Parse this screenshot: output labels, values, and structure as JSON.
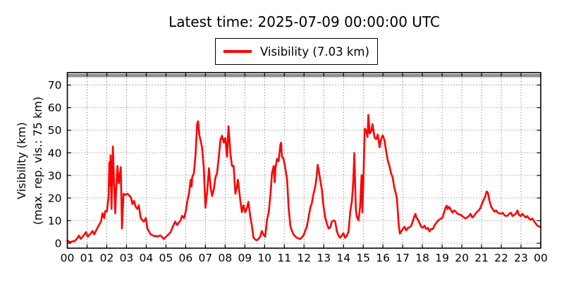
{
  "chart_data": {
    "type": "line",
    "title": "Latest time: 2025-07-09 00:00:00 UTC",
    "legend": {
      "label": "Visibility (7.03 km)",
      "position": "upper center"
    },
    "ylabel_line1": "Visibility (km)",
    "ylabel_line2": "(max. rep. vis.: 75 km)",
    "xlabel": "",
    "xlim": [
      0,
      24
    ],
    "ylim": [
      -2.2,
      75.5
    ],
    "xticks": [
      0,
      1,
      2,
      3,
      4,
      5,
      6,
      7,
      8,
      9,
      10,
      11,
      12,
      13,
      14,
      15,
      16,
      17,
      18,
      19,
      20,
      21,
      22,
      23,
      24
    ],
    "xtick_labels": [
      "00",
      "01",
      "02",
      "03",
      "04",
      "05",
      "06",
      "07",
      "08",
      "09",
      "10",
      "11",
      "12",
      "13",
      "14",
      "15",
      "16",
      "17",
      "18",
      "19",
      "20",
      "21",
      "22",
      "23",
      "00"
    ],
    "yticks": [
      0,
      10,
      20,
      30,
      40,
      50,
      60,
      70
    ],
    "ytick_labels": [
      "0",
      "10",
      "20",
      "30",
      "40",
      "50",
      "60",
      "70"
    ],
    "grid": "dotted",
    "grid_color": "#444444",
    "line_color": "#ff0000",
    "max_reported_visibility_km": 75,
    "max_band_color": "#8f8f8f",
    "latest_value_km": 7.03,
    "series": [
      {
        "name": "Visibility (7.03 km)",
        "color": "#ff0000",
        "points": [
          [
            0.0,
            1.2
          ],
          [
            0.1,
            0.6
          ],
          [
            0.18,
            0.5
          ],
          [
            0.27,
            0.9
          ],
          [
            0.35,
            0.8
          ],
          [
            0.44,
            1.5
          ],
          [
            0.52,
            2.4
          ],
          [
            0.59,
            3.4
          ],
          [
            0.68,
            1.9
          ],
          [
            0.77,
            2.8
          ],
          [
            0.86,
            3.9
          ],
          [
            0.95,
            4.9
          ],
          [
            1.03,
            2.9
          ],
          [
            1.12,
            3.7
          ],
          [
            1.2,
            4.4
          ],
          [
            1.28,
            5.4
          ],
          [
            1.36,
            3.9
          ],
          [
            1.45,
            5.5
          ],
          [
            1.54,
            7.0
          ],
          [
            1.62,
            8.3
          ],
          [
            1.71,
            9.6
          ],
          [
            1.78,
            13.2
          ],
          [
            1.87,
            11.1
          ],
          [
            1.92,
            14.2
          ],
          [
            2.0,
            14.0
          ],
          [
            2.09,
            20.4
          ],
          [
            2.13,
            35.8
          ],
          [
            2.17,
            25.5
          ],
          [
            2.19,
            38.9
          ],
          [
            2.24,
            15.2
          ],
          [
            2.31,
            42.8
          ],
          [
            2.37,
            26.5
          ],
          [
            2.43,
            13.2
          ],
          [
            2.48,
            25.0
          ],
          [
            2.54,
            34.2
          ],
          [
            2.61,
            26.5
          ],
          [
            2.66,
            30.0
          ],
          [
            2.71,
            33.7
          ],
          [
            2.77,
            6.5
          ],
          [
            2.85,
            21.9
          ],
          [
            2.92,
            21.4
          ],
          [
            3.05,
            21.9
          ],
          [
            3.22,
            20.4
          ],
          [
            3.3,
            17.3
          ],
          [
            3.38,
            18.8
          ],
          [
            3.47,
            16.0
          ],
          [
            3.55,
            15.2
          ],
          [
            3.62,
            16.8
          ],
          [
            3.72,
            11.1
          ],
          [
            3.8,
            10.3
          ],
          [
            3.88,
            9.6
          ],
          [
            3.98,
            11.1
          ],
          [
            4.06,
            6.5
          ],
          [
            4.15,
            5.0
          ],
          [
            4.23,
            3.9
          ],
          [
            4.32,
            3.5
          ],
          [
            4.4,
            3.1
          ],
          [
            4.48,
            3.3
          ],
          [
            4.56,
            2.9
          ],
          [
            4.65,
            3.3
          ],
          [
            4.73,
            3.4
          ],
          [
            4.82,
            2.5
          ],
          [
            4.9,
            1.9
          ],
          [
            4.98,
            2.7
          ],
          [
            5.07,
            3.4
          ],
          [
            5.16,
            4.2
          ],
          [
            5.24,
            4.9
          ],
          [
            5.33,
            6.9
          ],
          [
            5.41,
            8.5
          ],
          [
            5.47,
            9.6
          ],
          [
            5.57,
            8.0
          ],
          [
            5.65,
            9.0
          ],
          [
            5.74,
            10.1
          ],
          [
            5.82,
            12.1
          ],
          [
            5.92,
            11.1
          ],
          [
            6.0,
            14.0
          ],
          [
            6.09,
            18.8
          ],
          [
            6.17,
            21.9
          ],
          [
            6.25,
            28.1
          ],
          [
            6.3,
            25.0
          ],
          [
            6.33,
            29.1
          ],
          [
            6.42,
            31.1
          ],
          [
            6.5,
            39.4
          ],
          [
            6.58,
            52.7
          ],
          [
            6.63,
            54.0
          ],
          [
            6.69,
            48.0
          ],
          [
            6.75,
            45.5
          ],
          [
            6.83,
            42.5
          ],
          [
            6.92,
            33.2
          ],
          [
            7.0,
            15.7
          ],
          [
            7.09,
            22.9
          ],
          [
            7.18,
            33.2
          ],
          [
            7.26,
            25.0
          ],
          [
            7.34,
            20.9
          ],
          [
            7.43,
            24.0
          ],
          [
            7.51,
            29.1
          ],
          [
            7.59,
            31.1
          ],
          [
            7.68,
            38.3
          ],
          [
            7.76,
            45.5
          ],
          [
            7.84,
            47.6
          ],
          [
            7.93,
            44.5
          ],
          [
            8.01,
            46.6
          ],
          [
            8.1,
            38.3
          ],
          [
            8.17,
            51.8
          ],
          [
            8.27,
            39.4
          ],
          [
            8.35,
            34.2
          ],
          [
            8.43,
            34.2
          ],
          [
            8.52,
            21.9
          ],
          [
            8.6,
            25.0
          ],
          [
            8.65,
            28.1
          ],
          [
            8.77,
            18.8
          ],
          [
            8.85,
            13.7
          ],
          [
            8.93,
            16.8
          ],
          [
            9.02,
            13.7
          ],
          [
            9.11,
            15.7
          ],
          [
            9.18,
            18.3
          ],
          [
            9.28,
            11.6
          ],
          [
            9.36,
            7.5
          ],
          [
            9.44,
            2.4
          ],
          [
            9.53,
            1.6
          ],
          [
            9.61,
            1.3
          ],
          [
            9.7,
            2.0
          ],
          [
            9.78,
            2.9
          ],
          [
            9.86,
            5.4
          ],
          [
            9.94,
            3.9
          ],
          [
            10.03,
            2.9
          ],
          [
            10.13,
            10.6
          ],
          [
            10.21,
            13.7
          ],
          [
            10.3,
            21.9
          ],
          [
            10.38,
            31.1
          ],
          [
            10.46,
            34.2
          ],
          [
            10.51,
            27.0
          ],
          [
            10.55,
            33.2
          ],
          [
            10.63,
            37.3
          ],
          [
            10.71,
            36.3
          ],
          [
            10.8,
            43.5
          ],
          [
            10.84,
            44.5
          ],
          [
            10.88,
            38.3
          ],
          [
            10.96,
            37.3
          ],
          [
            11.05,
            33.2
          ],
          [
            11.14,
            28.1
          ],
          [
            11.22,
            15.7
          ],
          [
            11.31,
            7.5
          ],
          [
            11.39,
            5.4
          ],
          [
            11.47,
            3.9
          ],
          [
            11.55,
            3.0
          ],
          [
            11.64,
            2.4
          ],
          [
            11.72,
            2.1
          ],
          [
            11.81,
            1.9
          ],
          [
            11.89,
            2.6
          ],
          [
            11.97,
            3.4
          ],
          [
            12.06,
            5.4
          ],
          [
            12.15,
            7.5
          ],
          [
            12.23,
            11.6
          ],
          [
            12.32,
            15.7
          ],
          [
            12.4,
            17.8
          ],
          [
            12.48,
            21.9
          ],
          [
            12.57,
            25.0
          ],
          [
            12.65,
            30.1
          ],
          [
            12.69,
            34.7
          ],
          [
            12.73,
            33.0
          ],
          [
            12.82,
            28.1
          ],
          [
            12.9,
            24.0
          ],
          [
            12.98,
            16.8
          ],
          [
            13.07,
            11.6
          ],
          [
            13.16,
            8.5
          ],
          [
            13.25,
            6.5
          ],
          [
            13.33,
            7.0
          ],
          [
            13.41,
            9.6
          ],
          [
            13.5,
            10.1
          ],
          [
            13.58,
            9.6
          ],
          [
            13.66,
            5.4
          ],
          [
            13.75,
            3.4
          ],
          [
            13.83,
            2.4
          ],
          [
            13.91,
            3.4
          ],
          [
            14.0,
            4.4
          ],
          [
            14.08,
            2.4
          ],
          [
            14.18,
            3.4
          ],
          [
            14.26,
            5.4
          ],
          [
            14.34,
            13.7
          ],
          [
            14.43,
            18.8
          ],
          [
            14.5,
            28.0
          ],
          [
            14.55,
            39.9
          ],
          [
            14.59,
            26.0
          ],
          [
            14.63,
            14.7
          ],
          [
            14.68,
            11.6
          ],
          [
            14.76,
            10.1
          ],
          [
            14.84,
            15.7
          ],
          [
            14.92,
            30.1
          ],
          [
            14.96,
            13.7
          ],
          [
            15.0,
            25.0
          ],
          [
            15.08,
            50.7
          ],
          [
            15.16,
            49.6
          ],
          [
            15.22,
            47.0
          ],
          [
            15.26,
            56.8
          ],
          [
            15.33,
            48.6
          ],
          [
            15.41,
            49.6
          ],
          [
            15.47,
            52.7
          ],
          [
            15.58,
            46.6
          ],
          [
            15.66,
            46.1
          ],
          [
            15.74,
            48.1
          ],
          [
            15.83,
            42.5
          ],
          [
            15.91,
            46.1
          ],
          [
            15.99,
            47.8
          ],
          [
            16.08,
            45.5
          ],
          [
            16.16,
            40.9
          ],
          [
            16.24,
            36.8
          ],
          [
            16.33,
            34.2
          ],
          [
            16.41,
            31.1
          ],
          [
            16.49,
            29.1
          ],
          [
            16.58,
            24.5
          ],
          [
            16.66,
            21.9
          ],
          [
            16.71,
            19.8
          ],
          [
            16.8,
            8.0
          ],
          [
            16.86,
            4.2
          ],
          [
            16.95,
            5.5
          ],
          [
            17.01,
            6.3
          ],
          [
            17.1,
            7.3
          ],
          [
            17.18,
            5.7
          ],
          [
            17.27,
            6.8
          ],
          [
            17.35,
            7.0
          ],
          [
            17.44,
            7.8
          ],
          [
            17.52,
            9.9
          ],
          [
            17.6,
            12.0
          ],
          [
            17.65,
            13.0
          ],
          [
            17.69,
            11.4
          ],
          [
            17.77,
            10.5
          ],
          [
            17.86,
            8.8
          ],
          [
            17.94,
            7.3
          ],
          [
            18.02,
            6.8
          ],
          [
            18.11,
            7.8
          ],
          [
            18.19,
            6.3
          ],
          [
            18.28,
            6.8
          ],
          [
            18.36,
            5.2
          ],
          [
            18.44,
            6.3
          ],
          [
            18.53,
            6.3
          ],
          [
            18.61,
            7.8
          ],
          [
            18.69,
            8.8
          ],
          [
            18.78,
            9.9
          ],
          [
            18.86,
            10.4
          ],
          [
            18.94,
            10.9
          ],
          [
            19.03,
            11.4
          ],
          [
            19.11,
            14.0
          ],
          [
            19.19,
            16.1
          ],
          [
            19.24,
            16.6
          ],
          [
            19.28,
            15.1
          ],
          [
            19.36,
            16.1
          ],
          [
            19.44,
            14.8
          ],
          [
            19.53,
            13.5
          ],
          [
            19.61,
            14.5
          ],
          [
            19.69,
            14.0
          ],
          [
            19.78,
            13.0
          ],
          [
            19.86,
            12.8
          ],
          [
            19.94,
            12.5
          ],
          [
            20.03,
            12.0
          ],
          [
            20.11,
            11.4
          ],
          [
            20.19,
            10.9
          ],
          [
            20.28,
            11.5
          ],
          [
            20.36,
            12.0
          ],
          [
            20.44,
            13.0
          ],
          [
            20.53,
            11.4
          ],
          [
            20.61,
            12.0
          ],
          [
            20.69,
            13.0
          ],
          [
            20.78,
            14.0
          ],
          [
            20.86,
            14.5
          ],
          [
            20.94,
            15.6
          ],
          [
            21.03,
            17.7
          ],
          [
            21.11,
            19.2
          ],
          [
            21.19,
            20.8
          ],
          [
            21.26,
            22.9
          ],
          [
            21.32,
            22.4
          ],
          [
            21.4,
            18.7
          ],
          [
            21.49,
            16.1
          ],
          [
            21.57,
            15.1
          ],
          [
            21.65,
            14.0
          ],
          [
            21.74,
            14.5
          ],
          [
            21.82,
            13.5
          ],
          [
            21.9,
            13.2
          ],
          [
            21.99,
            13.0
          ],
          [
            22.07,
            13.5
          ],
          [
            22.15,
            12.5
          ],
          [
            22.24,
            12.0
          ],
          [
            22.32,
            12.2
          ],
          [
            22.4,
            13.0
          ],
          [
            22.49,
            13.5
          ],
          [
            22.57,
            12.0
          ],
          [
            22.65,
            12.5
          ],
          [
            22.74,
            13.0
          ],
          [
            22.82,
            14.5
          ],
          [
            22.9,
            12.5
          ],
          [
            22.99,
            12.0
          ],
          [
            23.07,
            13.0
          ],
          [
            23.15,
            12.2
          ],
          [
            23.24,
            11.4
          ],
          [
            23.32,
            12.0
          ],
          [
            23.4,
            10.9
          ],
          [
            23.49,
            10.4
          ],
          [
            23.57,
            10.9
          ],
          [
            23.65,
            9.9
          ],
          [
            23.74,
            8.8
          ],
          [
            23.82,
            7.8
          ],
          [
            23.9,
            7.5
          ],
          [
            24.0,
            7.03
          ]
        ]
      }
    ]
  }
}
